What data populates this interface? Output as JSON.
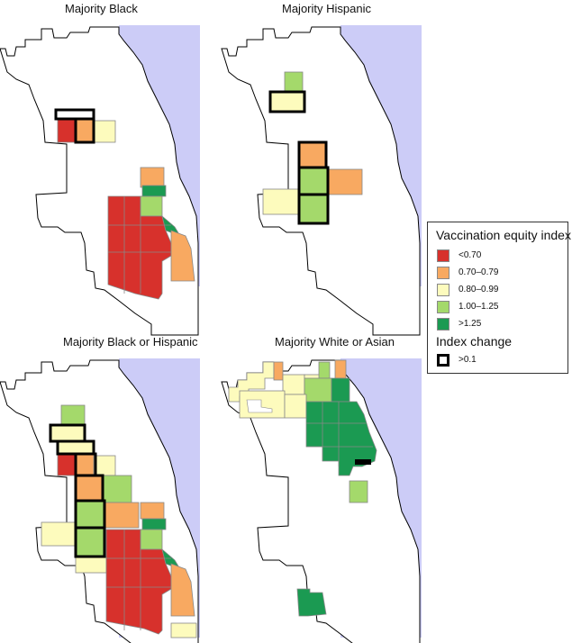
{
  "panels": [
    {
      "title": "Majority Black"
    },
    {
      "title": "Majority Hispanic"
    },
    {
      "title": "Majority Black or Hispanic"
    },
    {
      "title": "Majority White or Asian"
    }
  ],
  "legend": {
    "title": "Vaccination equity index",
    "items": [
      {
        "label": "<0.70",
        "color": "#d7312c"
      },
      {
        "label": "0.70–0.79",
        "color": "#f8a961"
      },
      {
        "label": "0.80–0.99",
        "color": "#fdfbbd"
      },
      {
        "label": "1.00–1.25",
        "color": "#a4d96b"
      },
      {
        "label": ">1.25",
        "color": "#1b9a52"
      }
    ],
    "change_title": "Index change",
    "change_label": ">0.1"
  },
  "colors": {
    "lake": "#ccccf7",
    "outline": "#000000",
    "cell_border": "#888888"
  }
}
